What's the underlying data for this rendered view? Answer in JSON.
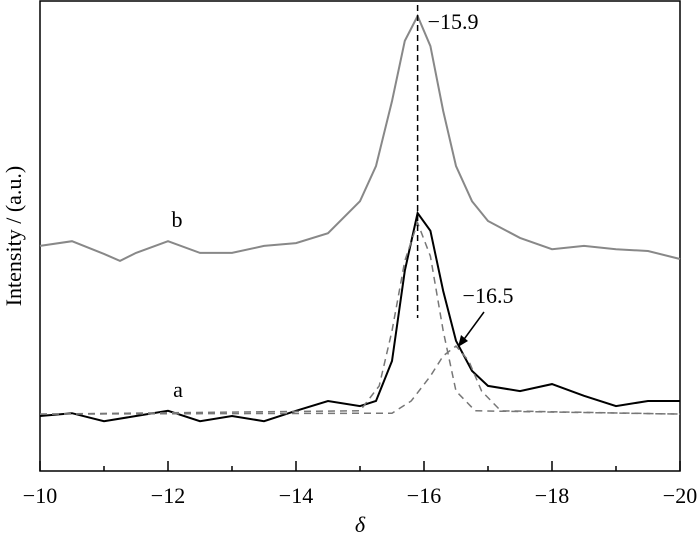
{
  "chart_data": {
    "type": "line",
    "xlabel": "δ",
    "ylabel": "Intensity / (a.u.)",
    "xlim": [
      -10,
      -20
    ],
    "xticks": [
      {
        "value": -10,
        "label": "−10"
      },
      {
        "value": -12,
        "label": "−12"
      },
      {
        "value": -14,
        "label": "−14"
      },
      {
        "value": -16,
        "label": "−16"
      },
      {
        "value": -18,
        "label": "−18"
      },
      {
        "value": -20,
        "label": "−20"
      }
    ],
    "xminor": [
      -11,
      -13,
      -15,
      -17,
      -19
    ],
    "ylim": [
      0,
      100
    ],
    "series": [
      {
        "name": "b",
        "color": "#888888",
        "style": "solid",
        "x": [
          -10,
          -10.5,
          -11,
          -11.25,
          -11.5,
          -12,
          -12.5,
          -13,
          -13.5,
          -14,
          -14.5,
          -15,
          -15.25,
          -15.5,
          -15.7,
          -15.9,
          -16.1,
          -16.3,
          -16.5,
          -16.75,
          -17,
          -17.5,
          -18,
          -18.5,
          -19,
          -19.5,
          -20
        ],
        "values": [
          47.9,
          48.9,
          46.2,
          44.7,
          46.4,
          48.9,
          46.4,
          46.4,
          47.9,
          48.5,
          50.6,
          57.4,
          64.9,
          78.7,
          91.5,
          96.8,
          90.4,
          76.6,
          64.9,
          57.4,
          53.2,
          49.6,
          47.2,
          47.9,
          47.2,
          46.8,
          45.1
        ]
      },
      {
        "name": "a",
        "color": "#000000",
        "style": "solid",
        "x": [
          -10,
          -10.5,
          -11,
          -11.5,
          -12,
          -12.5,
          -13,
          -13.5,
          -14,
          -14.5,
          -15,
          -15.25,
          -15.5,
          -15.7,
          -15.9,
          -16.1,
          -16.3,
          -16.5,
          -16.75,
          -17,
          -17.5,
          -18,
          -18.5,
          -19,
          -19.5,
          -20
        ],
        "values": [
          11.7,
          12.3,
          10.6,
          11.7,
          12.8,
          10.6,
          11.7,
          10.6,
          12.8,
          14.9,
          13.8,
          14.9,
          23.4,
          42.6,
          54.9,
          51.1,
          38.3,
          27.7,
          21.3,
          18.1,
          17.0,
          18.5,
          16.0,
          13.8,
          14.9,
          14.9
        ]
      },
      {
        "color": "#777777",
        "style": "dashed",
        "x": [
          -10,
          -15,
          -15.3,
          -15.5,
          -15.7,
          -15.9,
          -16.1,
          -16.3,
          -16.5,
          -16.8,
          -20
        ],
        "values": [
          12.1,
          12.8,
          18.1,
          29.8,
          44.7,
          52.8,
          45.7,
          29.8,
          17.0,
          12.8,
          12.1
        ]
      },
      {
        "color": "#777777",
        "style": "dashed",
        "x": [
          -10,
          -15.5,
          -15.8,
          -16.1,
          -16.3,
          -16.5,
          -16.7,
          -16.9,
          -17.2,
          -20
        ],
        "values": [
          12.1,
          12.3,
          14.9,
          20.2,
          24.5,
          26.6,
          23.4,
          17.0,
          12.8,
          12.1
        ]
      }
    ],
    "annotations": [
      {
        "text": "−15.9",
        "x": -15.9
      },
      {
        "text": "−16.5",
        "x": -16.5
      }
    ]
  }
}
